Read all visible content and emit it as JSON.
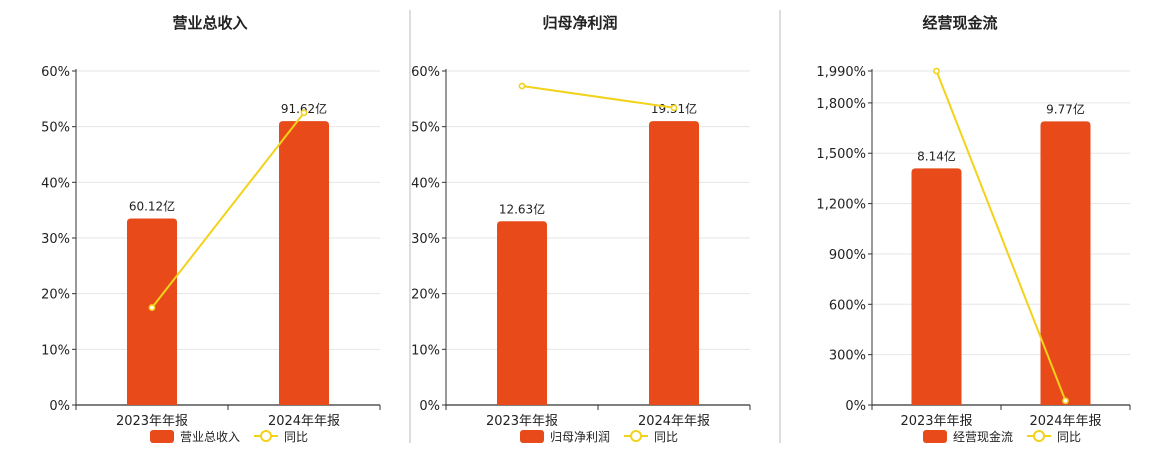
{
  "colors": {
    "bar": "#E84A1A",
    "line": "#F2D21B",
    "grid": "#E6E6E6",
    "axis": "#333333",
    "divider": "#BBBBBB",
    "text": "#222222"
  },
  "chart_data": [
    {
      "type": "bar",
      "title": "营业总收入",
      "categories": [
        "2023年年报",
        "2024年年报"
      ],
      "y_ticks": [
        "0%",
        "10%",
        "20%",
        "30%",
        "40%",
        "50%",
        "60%"
      ],
      "ylim": [
        0,
        60
      ],
      "series": [
        {
          "name": "营业总收入",
          "type": "bar",
          "values": [
            33.5,
            51.0
          ],
          "labels": [
            "60.12亿",
            "91.62亿"
          ]
        },
        {
          "name": "同比",
          "type": "line",
          "values": [
            17.5,
            52.5
          ]
        }
      ],
      "legend_position": "bottom"
    },
    {
      "type": "bar",
      "title": "归母净利润",
      "categories": [
        "2023年年报",
        "2024年年报"
      ],
      "y_ticks": [
        "0%",
        "10%",
        "20%",
        "30%",
        "40%",
        "50%",
        "60%"
      ],
      "ylim": [
        0,
        60
      ],
      "series": [
        {
          "name": "归母净利润",
          "type": "bar",
          "values": [
            33.0,
            51.0
          ],
          "labels": [
            "12.63亿",
            "19.31亿"
          ]
        },
        {
          "name": "同比",
          "type": "line",
          "values": [
            57.3,
            53.4
          ]
        }
      ],
      "legend_position": "bottom"
    },
    {
      "type": "bar",
      "title": "经营现金流",
      "categories": [
        "2023年年报",
        "2024年年报"
      ],
      "y_ticks": [
        "0%",
        "300%",
        "600%",
        "900%",
        "1,200%",
        "1,500%",
        "1,800%",
        "1,990%"
      ],
      "y_tick_values": [
        0,
        300,
        600,
        900,
        1200,
        1500,
        1800,
        1990
      ],
      "ylim": [
        0,
        1990
      ],
      "series": [
        {
          "name": "经营现金流",
          "type": "bar",
          "values": [
            1410,
            1690
          ],
          "labels": [
            "8.14亿",
            "9.77亿"
          ]
        },
        {
          "name": "同比",
          "type": "line",
          "values": [
            1990,
            25
          ]
        }
      ],
      "legend_position": "bottom"
    }
  ]
}
